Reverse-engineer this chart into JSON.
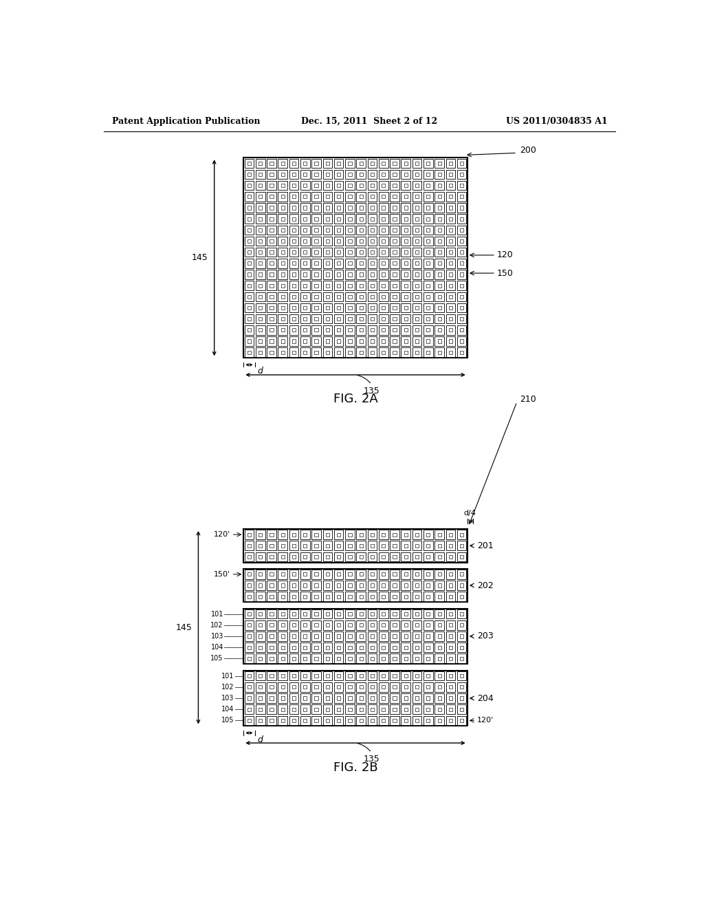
{
  "header_left": "Patent Application Publication",
  "header_mid": "Dec. 15, 2011  Sheet 2 of 12",
  "header_right": "US 2011/0304835 A1",
  "fig2a_label": "FIG. 2A",
  "fig2b_label": "FIG. 2B",
  "fig2a": {
    "ref": "200",
    "ncols": 20,
    "nrows": 18,
    "label_120": "120",
    "label_150": "150",
    "label_145": "145",
    "label_135": "135",
    "label_d": "d"
  },
  "fig2b": {
    "ref": "210",
    "ncols": 20,
    "group_rows": [
      3,
      3,
      5,
      5
    ],
    "group_labels": [
      "201",
      "202",
      "203",
      "204"
    ],
    "left_labels_group3": [
      "101",
      "102",
      "103",
      "104",
      "105"
    ],
    "left_labels_group4": [
      "101",
      "102",
      "103",
      "104",
      "105"
    ],
    "label_120p_top": "120'",
    "label_150p": "150'",
    "label_145": "145",
    "label_135": "135",
    "label_d": "d",
    "label_d4": "d/4",
    "label_120p_bot": "120'"
  },
  "bg_color": "#ffffff",
  "cell_bg": "#ffffff",
  "cell_border": "#1a1a1a",
  "grid_bg": "#ffffff",
  "text_color": "#000000",
  "font_size_header": 9,
  "font_size_label": 9,
  "font_size_fig": 13
}
